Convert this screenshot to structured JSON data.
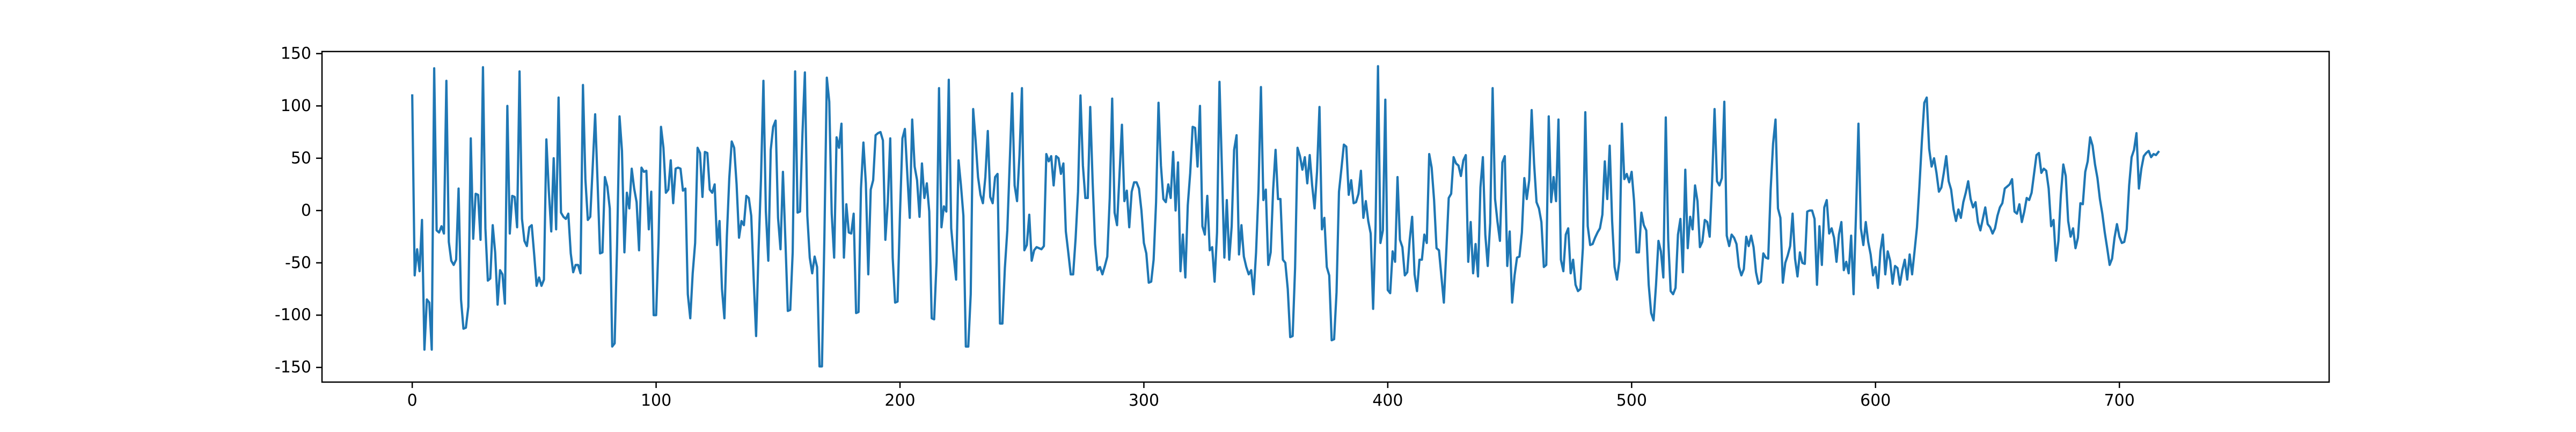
{
  "chart_data": {
    "type": "line",
    "title": "",
    "xlabel": "",
    "ylabel": "",
    "xlim": [
      -37,
      786
    ],
    "ylim": [
      -164,
      152
    ],
    "x_ticks": [
      0,
      100,
      200,
      300,
      400,
      500,
      600,
      700
    ],
    "y_ticks": [
      -150,
      -100,
      -50,
      0,
      50,
      100,
      150
    ],
    "grid": false,
    "legend": "none",
    "series": [
      {
        "color": "#1f77b4",
        "x_start": 0,
        "x_step": 1,
        "values": [
          110,
          -62,
          -37,
          -58,
          -9,
          -133,
          -85,
          -88,
          -133,
          136,
          -19,
          -21,
          -15,
          -22,
          124,
          -30,
          -48,
          -52,
          -47,
          21,
          -85,
          -113,
          -112,
          -92,
          69,
          -27,
          16,
          15,
          -28,
          137,
          -17,
          -67,
          -65,
          -14,
          -40,
          -90,
          -57,
          -61,
          -89,
          100,
          -22,
          14,
          13,
          -16,
          133,
          -8,
          -29,
          -34,
          -16,
          -14,
          -42,
          -72,
          -64,
          -72,
          -66,
          68,
          19,
          -20,
          50,
          -18,
          108,
          -2,
          -6,
          -8,
          -3,
          -41,
          -59,
          -52,
          -52,
          -60,
          120,
          30,
          -9,
          -6,
          42,
          92,
          27,
          -41,
          -40,
          32,
          23,
          2,
          -130,
          -127,
          -33,
          90,
          57,
          -40,
          17,
          2,
          40,
          21,
          8,
          -38,
          41,
          37,
          38,
          -18,
          18,
          -100,
          -100,
          -29,
          80,
          60,
          17,
          20,
          48,
          7,
          40,
          41,
          40,
          19,
          21,
          -80,
          -103,
          -60,
          -31,
          60,
          55,
          13,
          56,
          55,
          20,
          17,
          25,
          -33,
          -10,
          -75,
          -103,
          -25,
          31,
          66,
          60,
          25,
          -26,
          -10,
          -14,
          14,
          12,
          -5,
          -65,
          -120,
          -38,
          30,
          124,
          -1,
          -48,
          58,
          80,
          86,
          -7,
          -37,
          37,
          -28,
          -96,
          -95,
          -40,
          133,
          -2,
          -1,
          73,
          132,
          -5,
          -45,
          -60,
          -44,
          -54,
          -149,
          -149,
          -25,
          127,
          104,
          -3,
          -45,
          70,
          60,
          83,
          -45,
          6,
          -21,
          -22,
          -3,
          -98,
          -97,
          21,
          65,
          26,
          -61,
          20,
          29,
          72,
          74,
          75,
          67,
          -28,
          8,
          69,
          -45,
          -88,
          -87,
          -3,
          69,
          78,
          35,
          -7,
          87,
          42,
          29,
          -6,
          45,
          12,
          26,
          -1,
          -103,
          -104,
          -49,
          117,
          -16,
          4,
          -1,
          125,
          -17,
          -43,
          -66,
          48,
          24,
          -5,
          -130,
          -130,
          -80,
          97,
          67,
          32,
          15,
          7,
          32,
          76,
          13,
          7,
          32,
          35,
          -108,
          -108,
          -55,
          -19,
          46,
          112,
          24,
          9,
          53,
          117,
          -38,
          -33,
          -4,
          -48,
          -38,
          -35,
          -36,
          -37,
          -34,
          54,
          47,
          52,
          24,
          52,
          50,
          35,
          45,
          -20,
          -40,
          -61,
          -61,
          -27,
          18,
          110,
          43,
          12,
          12,
          99,
          27,
          -32,
          -57,
          -54,
          -61,
          -53,
          -44,
          12,
          107,
          -2,
          -14,
          34,
          82,
          9,
          19,
          -16,
          18,
          27,
          27,
          21,
          0,
          -31,
          -41,
          -69,
          -68,
          -47,
          8,
          103,
          43,
          11,
          8,
          25,
          12,
          56,
          0,
          46,
          -58,
          -23,
          -64,
          5,
          36,
          80,
          79,
          42,
          100,
          -15,
          -23,
          14,
          -38,
          -35,
          -68,
          -21,
          123,
          40,
          -45,
          10,
          -47,
          -15,
          58,
          72,
          -42,
          -14,
          -44,
          -54,
          -61,
          -57,
          -80,
          -40,
          20,
          118,
          10,
          20,
          -52,
          -40,
          20,
          58,
          11,
          11,
          -47,
          -50,
          -75,
          -121,
          -120,
          -55,
          60,
          52,
          39,
          51,
          26,
          53,
          24,
          2,
          37,
          99,
          -18,
          -7,
          -54,
          -62,
          -124,
          -123,
          -78,
          18,
          40,
          63,
          61,
          15,
          29,
          7,
          8,
          16,
          38,
          -7,
          9,
          -10,
          -22,
          -94,
          -15,
          138,
          -31,
          -19,
          106,
          -76,
          -79,
          -39,
          -49,
          32,
          -28,
          -35,
          -62,
          -59,
          -28,
          -6,
          -61,
          -77,
          -47,
          -47,
          -23,
          -31,
          54,
          41,
          10,
          -36,
          -38,
          -63,
          -88,
          -39,
          12,
          16,
          51,
          45,
          43,
          33,
          48,
          53,
          -49,
          -11,
          -60,
          -32,
          -63,
          22,
          51,
          -23,
          -53,
          -12,
          117,
          11,
          -11,
          -29,
          46,
          52,
          -53,
          -20,
          -88,
          -62,
          -45,
          -44,
          -21,
          31,
          11,
          29,
          96,
          45,
          8,
          2,
          -11,
          -54,
          -52,
          90,
          8,
          32,
          9,
          87,
          -47,
          -58,
          -23,
          -17,
          -60,
          -47,
          -71,
          -77,
          -75,
          -36,
          94,
          -15,
          -33,
          -32,
          -26,
          -21,
          -17,
          -4,
          47,
          11,
          62,
          -10,
          -54,
          -66,
          -48,
          83,
          30,
          35,
          27,
          37,
          9,
          -40,
          -40,
          -2,
          -14,
          -19,
          -71,
          -98,
          -105,
          -71,
          -29,
          -39,
          -64,
          89,
          -28,
          -77,
          -80,
          -74,
          -23,
          -8,
          -59,
          39,
          -36,
          -6,
          -18,
          24,
          9,
          -35,
          -30,
          -9,
          -11,
          -25,
          28,
          97,
          28,
          24,
          31,
          104,
          -24,
          -34,
          -23,
          -26,
          -32,
          -54,
          -62,
          -56,
          -25,
          -34,
          -24,
          -35,
          -59,
          -70,
          -68,
          -41,
          -45,
          -46,
          20,
          64,
          87,
          2,
          -7,
          -69,
          -50,
          -43,
          -34,
          -3,
          -46,
          -63,
          -40,
          -50,
          -51,
          -1,
          0,
          0,
          -8,
          -71,
          -15,
          -52,
          3,
          10,
          -22,
          -17,
          -26,
          -49,
          -23,
          -11,
          -57,
          -49,
          -60,
          -24,
          -80,
          -3,
          83,
          -17,
          -33,
          -11,
          -30,
          -42,
          -62,
          -54,
          -74,
          -39,
          -23,
          -61,
          -39,
          -48,
          -70,
          -53,
          -55,
          -71,
          -57,
          -47,
          -66,
          -42,
          -61,
          -39,
          -16,
          23,
          66,
          103,
          108,
          59,
          42,
          50,
          36,
          18,
          22,
          36,
          52,
          28,
          20,
          1,
          -10,
          1,
          -7,
          8,
          17,
          28,
          11,
          3,
          8,
          -11,
          -19,
          -8,
          3,
          -13,
          -16,
          -22,
          -17,
          -5,
          3,
          7,
          21,
          23,
          25,
          30,
          -1,
          -3,
          6,
          -11,
          -1,
          12,
          10,
          17,
          35,
          53,
          55,
          36,
          40,
          38,
          21,
          -15,
          -9,
          -48,
          -29,
          15,
          44,
          33,
          -10,
          -25,
          -17,
          -36,
          -26,
          7,
          6,
          37,
          47,
          70,
          62,
          44,
          31,
          11,
          -3,
          -21,
          -36,
          -52,
          -46,
          -26,
          -13,
          -25,
          -31,
          -30,
          -18,
          24,
          51,
          58,
          74,
          21,
          40,
          52,
          55,
          57,
          51,
          54,
          53,
          56
        ]
      }
    ]
  }
}
